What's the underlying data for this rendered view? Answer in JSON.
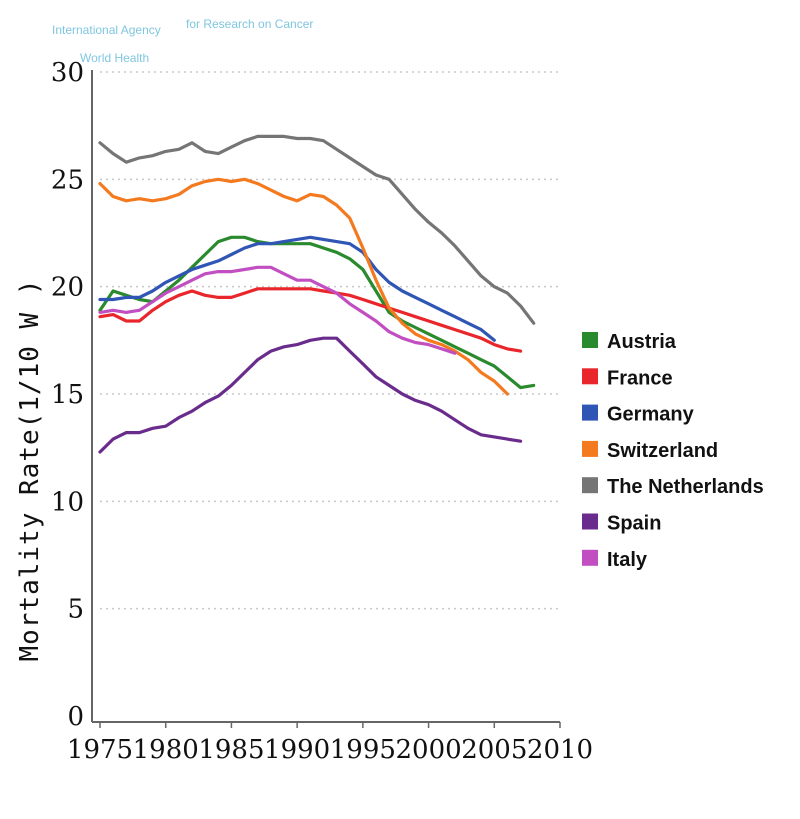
{
  "watermark": {
    "line1": "International Agency",
    "line1b": "for Research on Cancer",
    "line2": "World Health"
  },
  "chart_data": {
    "type": "line",
    "title": "",
    "xlabel": "",
    "ylabel": "Mortality Rate(1/10 W )",
    "xlim": [
      1975,
      2010
    ],
    "ylim": [
      0,
      30
    ],
    "xticks": [
      "1975",
      "1980",
      "1985",
      "1990",
      "1995",
      "2000",
      "2005",
      "2010"
    ],
    "yticks": [
      "0",
      "5",
      "10",
      "15",
      "20",
      "25",
      "30"
    ],
    "grid": "horizontal-dotted",
    "legend_position": "right",
    "series": [
      {
        "name": "Austria",
        "color": "#2a8a2e",
        "x": [
          1975,
          1976,
          1977,
          1978,
          1979,
          1980,
          1981,
          1982,
          1983,
          1984,
          1985,
          1986,
          1987,
          1988,
          1989,
          1990,
          1991,
          1992,
          1993,
          1994,
          1995,
          1996,
          1997,
          1998,
          1999,
          2000,
          2001,
          2002,
          2003,
          2004,
          2005,
          2006,
          2007,
          2008
        ],
        "y": [
          18.9,
          19.8,
          19.6,
          19.4,
          19.3,
          19.8,
          20.3,
          20.9,
          21.5,
          22.1,
          22.3,
          22.3,
          22.1,
          22.0,
          22.0,
          22.0,
          22.0,
          21.8,
          21.6,
          21.3,
          20.8,
          19.8,
          18.8,
          18.4,
          18.1,
          17.8,
          17.5,
          17.2,
          16.9,
          16.6,
          16.3,
          15.8,
          15.3,
          15.4
        ]
      },
      {
        "name": "France",
        "color": "#e8262b",
        "x": [
          1975,
          1976,
          1977,
          1978,
          1979,
          1980,
          1981,
          1982,
          1983,
          1984,
          1985,
          1986,
          1987,
          1988,
          1989,
          1990,
          1991,
          1992,
          1993,
          1994,
          1995,
          1996,
          1997,
          1998,
          1999,
          2000,
          2001,
          2002,
          2003,
          2004,
          2005,
          2006,
          2007
        ],
        "y": [
          18.6,
          18.7,
          18.4,
          18.4,
          18.9,
          19.3,
          19.6,
          19.8,
          19.6,
          19.5,
          19.5,
          19.7,
          19.9,
          19.9,
          19.9,
          19.9,
          19.9,
          19.8,
          19.7,
          19.6,
          19.4,
          19.2,
          19.0,
          18.8,
          18.6,
          18.4,
          18.2,
          18.0,
          17.8,
          17.6,
          17.3,
          17.1,
          17.0
        ]
      },
      {
        "name": "Germany",
        "color": "#2f55b5",
        "x": [
          1975,
          1976,
          1977,
          1978,
          1979,
          1980,
          1981,
          1982,
          1983,
          1984,
          1985,
          1986,
          1987,
          1988,
          1989,
          1990,
          1991,
          1992,
          1993,
          1994,
          1995,
          1996,
          1997,
          1998,
          1999,
          2000,
          2001,
          2002,
          2003,
          2004,
          2005
        ],
        "y": [
          19.4,
          19.4,
          19.5,
          19.5,
          19.8,
          20.2,
          20.5,
          20.8,
          21.0,
          21.2,
          21.5,
          21.8,
          22.0,
          22.0,
          22.1,
          22.2,
          22.3,
          22.2,
          22.1,
          22.0,
          21.6,
          20.8,
          20.2,
          19.8,
          19.5,
          19.2,
          18.9,
          18.6,
          18.3,
          18.0,
          17.5
        ]
      },
      {
        "name": "Switzerland",
        "color": "#f47a1f",
        "x": [
          1975,
          1976,
          1977,
          1978,
          1979,
          1980,
          1981,
          1982,
          1983,
          1984,
          1985,
          1986,
          1987,
          1988,
          1989,
          1990,
          1991,
          1992,
          1993,
          1994,
          1995,
          1996,
          1997,
          1998,
          1999,
          2000,
          2001,
          2002,
          2003,
          2004,
          2005,
          2006
        ],
        "y": [
          24.8,
          24.2,
          24.0,
          24.1,
          24.0,
          24.1,
          24.3,
          24.7,
          24.9,
          25.0,
          24.9,
          25.0,
          24.8,
          24.5,
          24.2,
          24.0,
          24.3,
          24.2,
          23.8,
          23.2,
          21.8,
          20.3,
          19.0,
          18.3,
          17.8,
          17.5,
          17.3,
          17.0,
          16.6,
          16.0,
          15.6,
          15.0
        ]
      },
      {
        "name": "The Netherlands",
        "color": "#757575",
        "x": [
          1975,
          1976,
          1977,
          1978,
          1979,
          1980,
          1981,
          1982,
          1983,
          1984,
          1985,
          1986,
          1987,
          1988,
          1989,
          1990,
          1991,
          1992,
          1993,
          1994,
          1995,
          1996,
          1997,
          1998,
          1999,
          2000,
          2001,
          2002,
          2003,
          2004,
          2005,
          2006,
          2007,
          2008
        ],
        "y": [
          26.7,
          26.2,
          25.8,
          26.0,
          26.1,
          26.3,
          26.4,
          26.7,
          26.3,
          26.2,
          26.5,
          26.8,
          27.0,
          27.0,
          27.0,
          26.9,
          26.9,
          26.8,
          26.4,
          26.0,
          25.6,
          25.2,
          25.0,
          24.3,
          23.6,
          23.0,
          22.5,
          21.9,
          21.2,
          20.5,
          20.0,
          19.7,
          19.1,
          18.3
        ]
      },
      {
        "name": "Spain",
        "color": "#6a2c8c",
        "x": [
          1975,
          1976,
          1977,
          1978,
          1979,
          1980,
          1981,
          1982,
          1983,
          1984,
          1985,
          1986,
          1987,
          1988,
          1989,
          1990,
          1991,
          1992,
          1993,
          1994,
          1995,
          1996,
          1997,
          1998,
          1999,
          2000,
          2001,
          2002,
          2003,
          2004,
          2005,
          2006,
          2007
        ],
        "y": [
          12.3,
          12.9,
          13.2,
          13.2,
          13.4,
          13.5,
          13.9,
          14.2,
          14.6,
          14.9,
          15.4,
          16.0,
          16.6,
          17.0,
          17.2,
          17.3,
          17.5,
          17.6,
          17.6,
          17.0,
          16.4,
          15.8,
          15.4,
          15.0,
          14.7,
          14.5,
          14.2,
          13.8,
          13.4,
          13.1,
          13.0,
          12.9,
          12.8
        ]
      },
      {
        "name": "Italy",
        "color": "#c14fc1",
        "x": [
          1975,
          1976,
          1977,
          1978,
          1979,
          1980,
          1981,
          1982,
          1983,
          1984,
          1985,
          1986,
          1987,
          1988,
          1989,
          1990,
          1991,
          1992,
          1993,
          1994,
          1995,
          1996,
          1997,
          1998,
          1999,
          2000,
          2001,
          2002
        ],
        "y": [
          18.8,
          18.9,
          18.8,
          18.9,
          19.3,
          19.7,
          20.0,
          20.3,
          20.6,
          20.7,
          20.7,
          20.8,
          20.9,
          20.9,
          20.6,
          20.3,
          20.3,
          20.0,
          19.7,
          19.2,
          18.8,
          18.4,
          17.9,
          17.6,
          17.4,
          17.3,
          17.1,
          16.9
        ]
      }
    ]
  }
}
